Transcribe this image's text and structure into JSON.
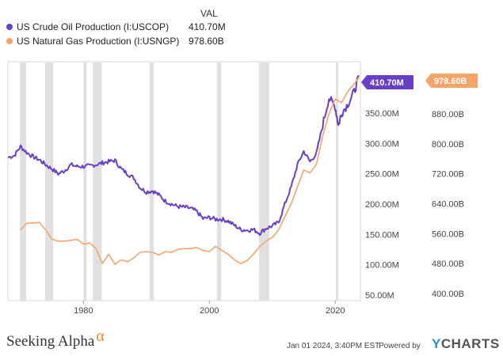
{
  "legend": {
    "header": "VAL",
    "items": [
      {
        "name": "US Crude Oil Production (I:USCOP)",
        "value": "410.70M",
        "color": "#6a3fc8"
      },
      {
        "name": "US Natural Gas Production (I:USNGP)",
        "value": "978.60B",
        "color": "#f7a46b"
      }
    ]
  },
  "chart_data": {
    "type": "line",
    "x_ticks": [
      "1980",
      "2000",
      "2020"
    ],
    "x_range": [
      1968,
      2024
    ],
    "left_axis": {
      "ticks": [
        "50.00M",
        "100.00M",
        "150.00M",
        "200.00M",
        "250.00M",
        "300.00M",
        "350.00M"
      ],
      "range_millions": [
        50,
        420
      ]
    },
    "right_axis": {
      "ticks": [
        "400.00B",
        "480.00B",
        "560.00B",
        "640.00B",
        "720.00B",
        "800.00B",
        "880.00B"
      ],
      "range_billions": [
        400,
        1000
      ]
    },
    "last_value_labels": {
      "oil": "410.70M",
      "gas": "978.60B"
    },
    "recessions": [
      [
        1969.9,
        1970.9
      ],
      [
        1973.9,
        1975.2
      ],
      [
        1980.0,
        1980.5
      ],
      [
        1981.5,
        1982.9
      ],
      [
        1990.5,
        1991.2
      ],
      [
        2001.2,
        2001.9
      ],
      [
        2007.9,
        2009.5
      ],
      [
        2020.1,
        2020.4
      ]
    ],
    "series": [
      {
        "name": "US Crude Oil Production (I:USCOP)",
        "axis": "left",
        "color": "#6a3fc8",
        "x": [
          1968,
          1969,
          1970,
          1971,
          1972,
          1973,
          1974,
          1975,
          1976,
          1977,
          1978,
          1979,
          1980,
          1981,
          1982,
          1983,
          1984,
          1985,
          1986,
          1987,
          1988,
          1989,
          1990,
          1991,
          1992,
          1993,
          1994,
          1995,
          1996,
          1997,
          1998,
          1999,
          2000,
          2001,
          2002,
          2003,
          2004,
          2005,
          2006,
          2007,
          2008,
          2009,
          2010,
          2011,
          2012,
          2013,
          2014,
          2015,
          2016,
          2017,
          2018,
          2019,
          2020,
          2020.5,
          2021,
          2022,
          2023,
          2023.8
        ],
        "values": [
          277,
          280,
          295,
          285,
          278,
          273,
          265,
          258,
          250,
          255,
          265,
          262,
          262,
          263,
          265,
          268,
          270,
          272,
          258,
          250,
          243,
          227,
          220,
          222,
          215,
          205,
          200,
          196,
          195,
          193,
          188,
          176,
          178,
          175,
          175,
          172,
          165,
          158,
          157,
          158,
          152,
          160,
          164,
          170,
          200,
          228,
          265,
          287,
          270,
          283,
          330,
          375,
          360,
          330,
          350,
          365,
          385,
          410.7
        ]
      },
      {
        "name": "US Natural Gas Production (I:USNGP)",
        "axis": "right",
        "color": "#f7a46b",
        "x": [
          1970,
          1971,
          1972,
          1973,
          1974,
          1975,
          1976,
          1977,
          1978,
          1979,
          1980,
          1981,
          1982,
          1983,
          1984,
          1985,
          1986,
          1987,
          1988,
          1989,
          1990,
          1991,
          1992,
          1993,
          1994,
          1995,
          1996,
          1997,
          1998,
          1999,
          2000,
          2001,
          2002,
          2003,
          2004,
          2005,
          2006,
          2007,
          2008,
          2009,
          2010,
          2011,
          2012,
          2013,
          2014,
          2015,
          2016,
          2017,
          2018,
          2019,
          2020,
          2021,
          2022,
          2023,
          2023.8
        ],
        "values": [
          570,
          588,
          588,
          590,
          570,
          545,
          540,
          540,
          542,
          545,
          532,
          535,
          520,
          480,
          505,
          478,
          490,
          485,
          495,
          510,
          512,
          510,
          503,
          512,
          510,
          518,
          520,
          520,
          523,
          515,
          512,
          526,
          515,
          505,
          490,
          480,
          488,
          505,
          525,
          540,
          550,
          570,
          605,
          640,
          685,
          730,
          722,
          745,
          820,
          880,
          920,
          910,
          940,
          960,
          978.6
        ]
      }
    ]
  },
  "footer": {
    "brand": "Seeking Alpha",
    "brand_mark": "α",
    "date": "Jan 01 2024, 3:40PM EST.",
    "powered": "Powered by",
    "ycharts_y": "Y",
    "ycharts_rest": "CHARTS"
  }
}
